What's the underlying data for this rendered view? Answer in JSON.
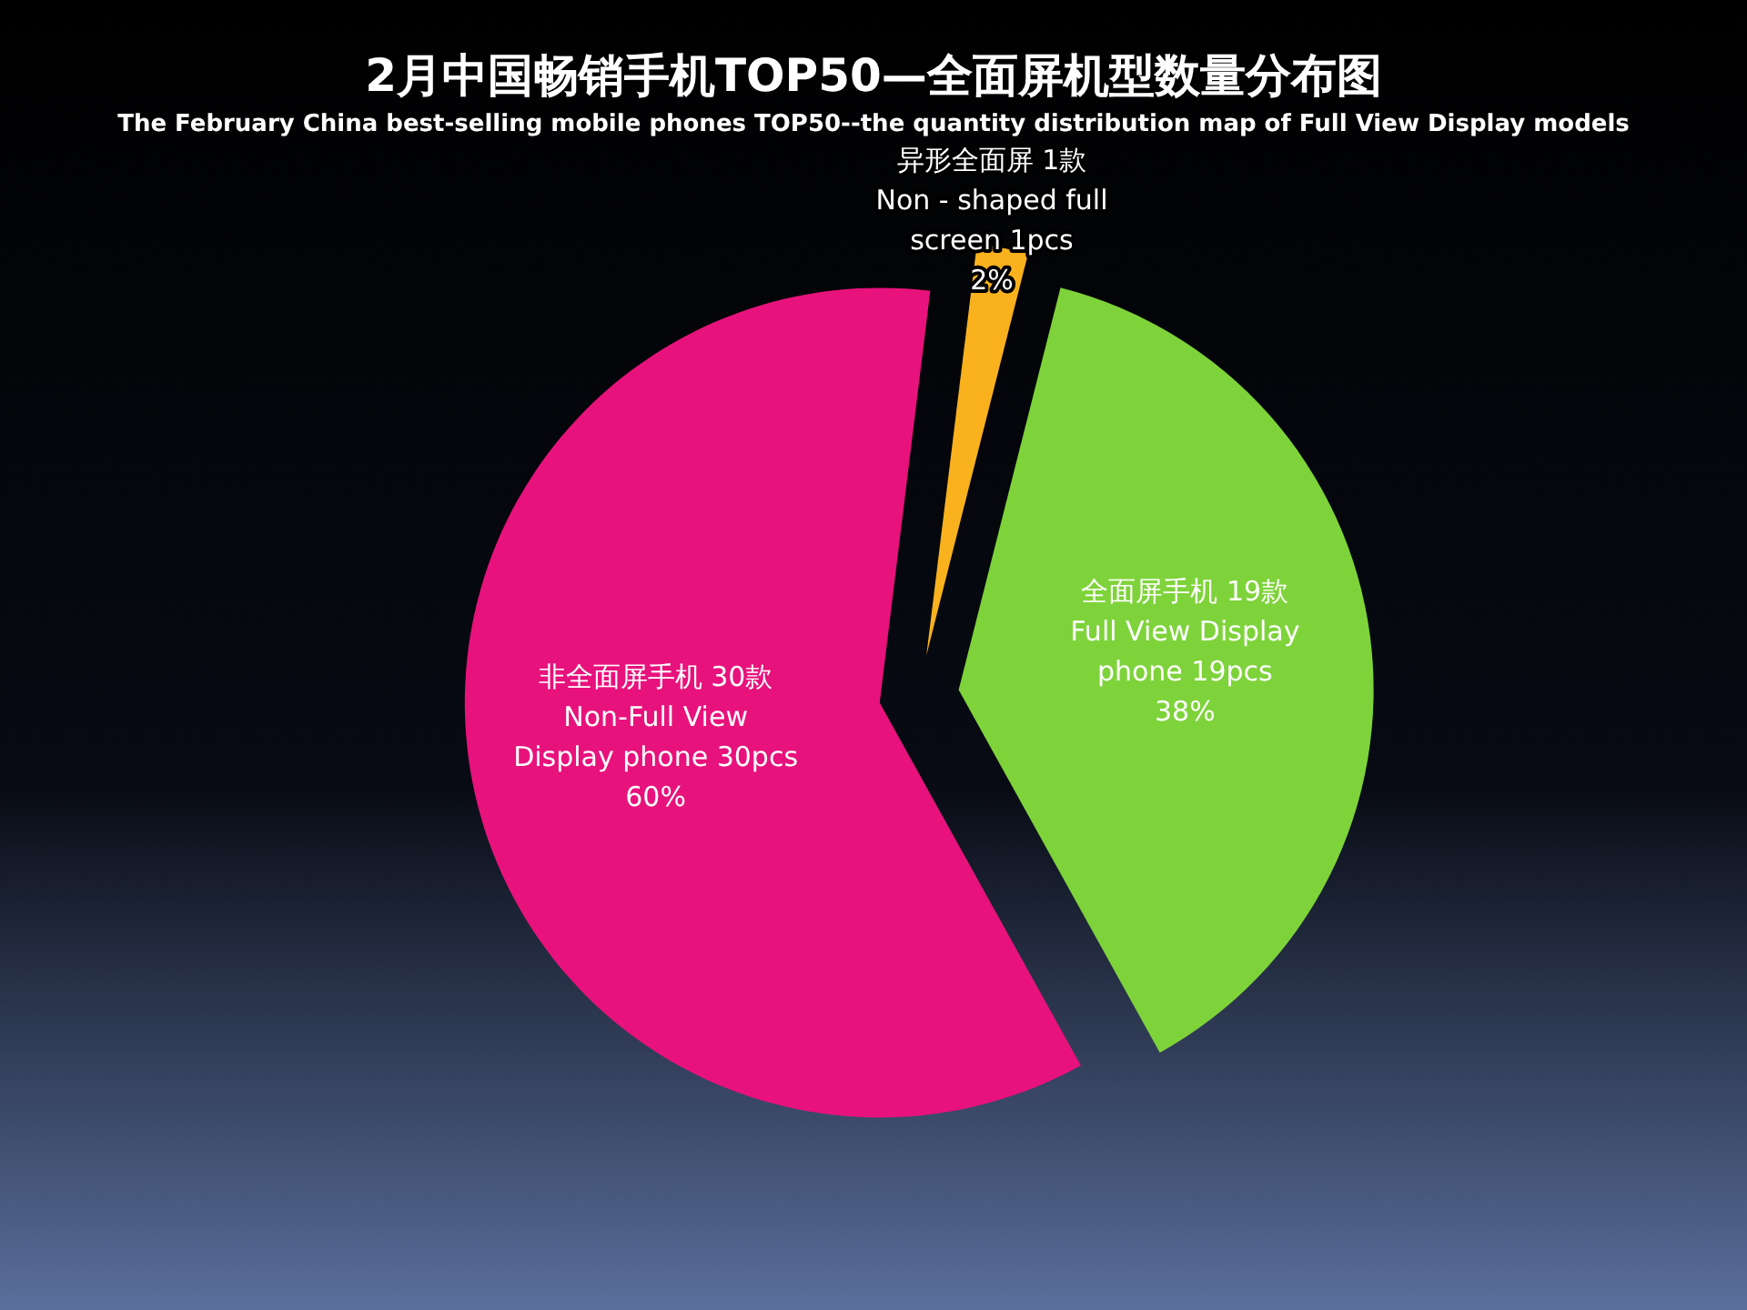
{
  "chart_data": {
    "type": "pie",
    "title": "2月中国畅销手机TOP50—全面屏机型数量分布图",
    "subtitle": "The February China best-selling mobile phones TOP50--the quantity distribution map of Full View Display models",
    "categories": [
      "异形全面屏 1款",
      "全面屏手机 19款",
      "非全面屏手机 30款"
    ],
    "values": [
      1,
      19,
      30
    ],
    "colors": [
      "#f9b21d",
      "#7ed33a",
      "#e8127c"
    ],
    "value_labels": [
      "Non - shaped full\nscreen 1pcs\n2%",
      "Full View Display\nphone 19pcs\n38%",
      "Non-Full View\nDisplay phone 30pcs\n60%"
    ],
    "legend": false
  }
}
